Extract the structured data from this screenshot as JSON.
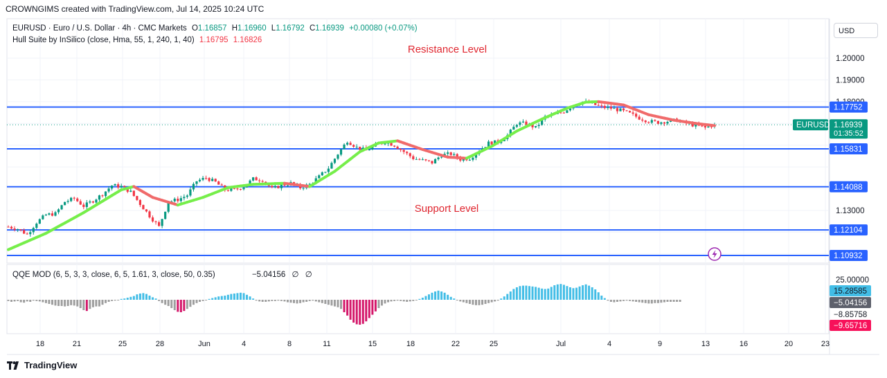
{
  "header": {
    "attribution": "CROWNGIMS created with TradingView.com, Jul 14, 2025 10:24 UTC"
  },
  "legend": {
    "symbol_line": "EURUSD · Euro / U.S. Dollar · 4h · CMC Markets",
    "o_key": "O",
    "o_val": "1.16857",
    "h_key": "H",
    "h_val": "1.16960",
    "l_key": "L",
    "l_val": "1.16792",
    "c_key": "C",
    "c_val": "1.16939",
    "change": "+0.00080 (+0.07%)",
    "hull_label": "Hull Suite by InSilico (close, Hma, 55, 1, 240, 1, 40)",
    "hull_v1": "1.16795",
    "hull_v2": "1.16826",
    "qqe_label": "QQE MOD (6, 5, 3, 3, close, 6, 5, 1.61, 3, close, 50, 0.35)",
    "qqe_val": "−5.04156",
    "qqe_sym1": "∅",
    "qqe_sym2": "∅"
  },
  "annotations": {
    "resistance": "Resistance Level",
    "support": "Support Level"
  },
  "currency_button": "USD",
  "footer": {
    "brand": "TradingView"
  },
  "colors": {
    "up": "#089981",
    "down": "#f23645",
    "level_line": "#2962ff",
    "hull_green": "#76ee4a",
    "hull_red": "#f06a6a",
    "qqe_blue": "#42bde6",
    "qqe_pink": "#d4176a",
    "qqe_gray": "#9e9e9e",
    "annotation": "#e0262f"
  },
  "chart_data": [
    {
      "type": "candlestick",
      "symbol": "EURUSD",
      "interval": "4h",
      "y_scale": {
        "ticks": [
          "1.13000",
          "1.19000",
          "1.20000"
        ],
        "range": [
          1.104,
          1.207
        ]
      },
      "x_ticks": [
        "18",
        "21",
        "25",
        "28",
        "Jun",
        "4",
        "8",
        "11",
        "15",
        "18",
        "22",
        "25",
        "Jul",
        "4",
        "9",
        "13",
        "16",
        "20",
        "23"
      ],
      "last_price": {
        "label": "EURUSD",
        "value": "1.16939",
        "countdown": "01:35:52"
      },
      "levels": [
        {
          "value": 1.17752,
          "label": "1.17752"
        },
        {
          "value": 1.15831,
          "label": "1.15831"
        },
        {
          "value": 1.14088,
          "label": "1.14088"
        },
        {
          "value": 1.12104,
          "label": "1.12104"
        },
        {
          "value": 1.10932,
          "label": "1.10932"
        }
      ],
      "hull_labels": [
        {
          "value": 1.16826,
          "label": "1.16826"
        },
        {
          "value": 1.16795,
          "label": "1.16795"
        }
      ],
      "partial_tick": "1.18000",
      "price_path": [
        [
          0,
          1.1225
        ],
        [
          3,
          1.1215
        ],
        [
          6,
          1.119
        ],
        [
          9,
          1.1245
        ],
        [
          12,
          1.128
        ],
        [
          15,
          1.1285
        ],
        [
          18,
          1.134
        ],
        [
          21,
          1.1355
        ],
        [
          24,
          1.132
        ],
        [
          27,
          1.1345
        ],
        [
          30,
          1.1375
        ],
        [
          33,
          1.1415
        ],
        [
          36,
          1.141
        ],
        [
          39,
          1.1385
        ],
        [
          42,
          1.133
        ],
        [
          45,
          1.1275
        ],
        [
          48,
          1.1225
        ],
        [
          51,
          1.134
        ],
        [
          54,
          1.135
        ],
        [
          57,
          1.137
        ],
        [
          60,
          1.1435
        ],
        [
          63,
          1.145
        ],
        [
          66,
          1.143
        ],
        [
          69,
          1.1395
        ],
        [
          72,
          1.1395
        ],
        [
          75,
          1.141
        ],
        [
          78,
          1.1445
        ],
        [
          81,
          1.144
        ],
        [
          84,
          1.14
        ],
        [
          87,
          1.1415
        ],
        [
          90,
          1.1425
        ],
        [
          93,
          1.1405
        ],
        [
          96,
          1.142
        ],
        [
          99,
          1.1455
        ],
        [
          102,
          1.1495
        ],
        [
          105,
          1.156
        ],
        [
          108,
          1.162
        ],
        [
          111,
          1.159
        ],
        [
          114,
          1.1575
        ],
        [
          117,
          1.16
        ],
        [
          120,
          1.1615
        ],
        [
          123,
          1.16
        ],
        [
          126,
          1.157
        ],
        [
          129,
          1.154
        ],
        [
          132,
          1.153
        ],
        [
          135,
          1.152
        ],
        [
          138,
          1.1555
        ],
        [
          141,
          1.156
        ],
        [
          144,
          1.1535
        ],
        [
          147,
          1.154
        ],
        [
          150,
          1.1575
        ],
        [
          153,
          1.161
        ],
        [
          156,
          1.1615
        ],
        [
          159,
          1.1645
        ],
        [
          162,
          1.17
        ],
        [
          165,
          1.17
        ],
        [
          168,
          1.168
        ],
        [
          171,
          1.173
        ],
        [
          174,
          1.174
        ],
        [
          177,
          1.1755
        ],
        [
          180,
          1.1785
        ],
        [
          183,
          1.18
        ],
        [
          186,
          1.179
        ],
        [
          189,
          1.1775
        ],
        [
          192,
          1.177
        ],
        [
          195,
          1.176
        ],
        [
          198,
          1.1745
        ],
        [
          201,
          1.1725
        ],
        [
          204,
          1.171
        ],
        [
          207,
          1.1705
        ],
        [
          210,
          1.171
        ],
        [
          213,
          1.1715
        ],
        [
          216,
          1.17
        ],
        [
          219,
          1.169
        ],
        [
          222,
          1.168
        ],
        [
          225,
          1.1694
        ]
      ],
      "hull_path": [
        [
          0,
          1.112
        ],
        [
          12,
          1.1195
        ],
        [
          24,
          1.129
        ],
        [
          36,
          1.1395
        ],
        [
          40,
          1.141
        ],
        [
          46,
          1.136
        ],
        [
          54,
          1.1325
        ],
        [
          62,
          1.136
        ],
        [
          70,
          1.1405
        ],
        [
          78,
          1.142
        ],
        [
          88,
          1.1425
        ],
        [
          96,
          1.141
        ],
        [
          104,
          1.148
        ],
        [
          112,
          1.157
        ],
        [
          118,
          1.161
        ],
        [
          124,
          1.162
        ],
        [
          132,
          1.158
        ],
        [
          140,
          1.1545
        ],
        [
          146,
          1.154
        ],
        [
          154,
          1.1595
        ],
        [
          162,
          1.1665
        ],
        [
          170,
          1.172
        ],
        [
          178,
          1.177
        ],
        [
          184,
          1.1798
        ],
        [
          188,
          1.18
        ],
        [
          196,
          1.1785
        ],
        [
          204,
          1.174
        ],
        [
          212,
          1.1715
        ],
        [
          220,
          1.1698
        ],
        [
          225,
          1.169
        ]
      ]
    },
    {
      "type": "bar",
      "title": "QQE MOD",
      "y_ticks": [
        "25.00000"
      ],
      "value_labels": [
        "15.28585",
        "−5.04156",
        "−8.85758",
        "−9.65716"
      ],
      "histogram": [
        -3,
        -5,
        -4,
        -3,
        -6,
        -7,
        -4,
        -5,
        -2,
        -3,
        -4,
        -6,
        -8,
        -10,
        -12,
        -14,
        -15,
        -15,
        -16,
        -15,
        -13,
        -14,
        -16,
        -20,
        -25,
        -27,
        -22,
        -18,
        -16,
        -16,
        -12,
        -8,
        -5,
        -3,
        -2,
        -1,
        2,
        3,
        5,
        7,
        9,
        13,
        15,
        16,
        14,
        10,
        6,
        3,
        -3,
        -8,
        -12,
        -15,
        -20,
        -25,
        -29,
        -30,
        -27,
        -22,
        -17,
        -12,
        -8,
        -5,
        -3,
        -1,
        2,
        4,
        6,
        8,
        9,
        10,
        12,
        14,
        15,
        16,
        17,
        16,
        12,
        8,
        3,
        -2,
        -4,
        -5,
        -5,
        -4,
        -3,
        -3,
        -2,
        -3,
        -4,
        -6,
        -7,
        -8,
        -9,
        -8,
        -6,
        -5,
        -3,
        -2,
        -4,
        -6,
        -8,
        -10,
        -12,
        -14,
        -16,
        -18,
        -22,
        -30,
        -38,
        -48,
        -55,
        -59,
        -60,
        -58,
        -52,
        -44,
        -36,
        -28,
        -20,
        -14,
        -9,
        -6,
        -4,
        -3,
        -2,
        -3,
        -4,
        -5,
        -4,
        -3,
        -1,
        2,
        5,
        9,
        13,
        17,
        20,
        22,
        20,
        17,
        12,
        7,
        3,
        -1,
        -4,
        -6,
        -8,
        -10,
        -12,
        -13,
        -13,
        -12,
        -10,
        -8,
        -6,
        -4,
        -2,
        3,
        8,
        14,
        20,
        26,
        30,
        33,
        34,
        34,
        33,
        32,
        31,
        29,
        27,
        26,
        27,
        31,
        35,
        37,
        38,
        36,
        33,
        30,
        28,
        29,
        32,
        35,
        37,
        34,
        30,
        25,
        18,
        10,
        4,
        -2,
        -5,
        -6,
        -5,
        -4,
        -3,
        -2,
        -3,
        -4,
        -5,
        -6,
        -7,
        -8,
        -9,
        -9,
        -8,
        -8,
        -7,
        -6,
        -5,
        -5,
        -5,
        -5,
        -5
      ]
    }
  ]
}
